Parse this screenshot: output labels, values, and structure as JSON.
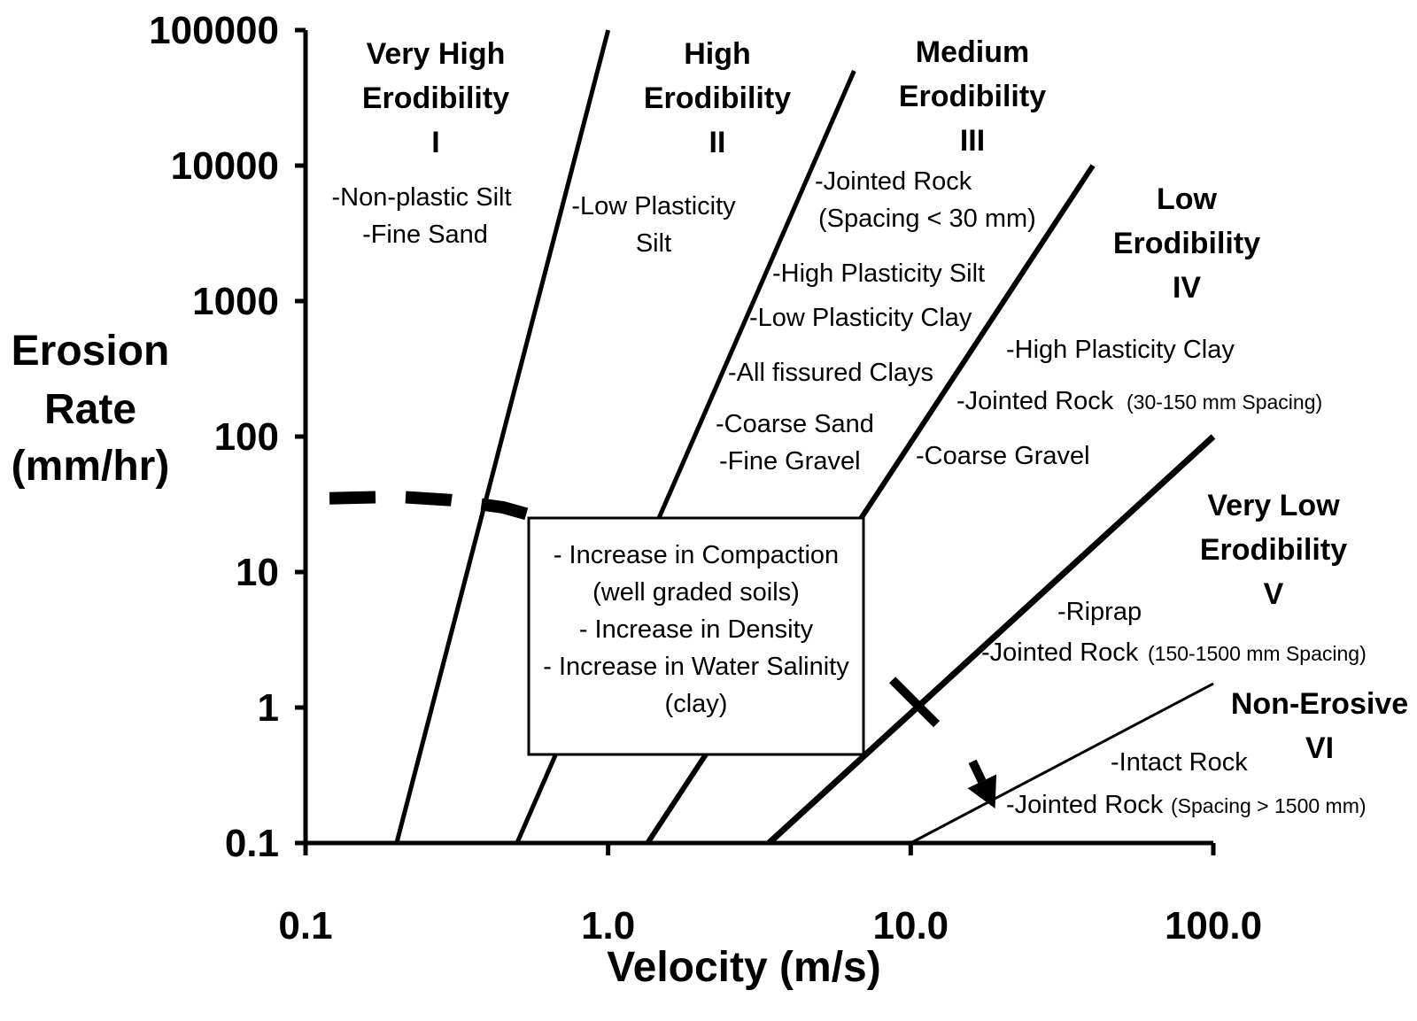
{
  "chart_data": {
    "type": "line",
    "title": "",
    "xlabel": "Velocity (m/s)",
    "ylabel": [
      "Erosion",
      "Rate",
      "(mm/hr)"
    ],
    "x_scale": "log",
    "y_scale": "log",
    "xlim": [
      0.1,
      100
    ],
    "ylim": [
      0.1,
      100000
    ],
    "x_ticks": [
      {
        "value": 0.1,
        "label": "0.1"
      },
      {
        "value": 1,
        "label": "1.0"
      },
      {
        "value": 10,
        "label": "10.0"
      },
      {
        "value": 100,
        "label": "100.0"
      }
    ],
    "y_ticks": [
      {
        "value": 0.1,
        "label": "0.1"
      },
      {
        "value": 1,
        "label": "1"
      },
      {
        "value": 10,
        "label": "10"
      },
      {
        "value": 100,
        "label": "100"
      },
      {
        "value": 1000,
        "label": "1000"
      },
      {
        "value": 10000,
        "label": "10000"
      },
      {
        "value": 100000,
        "label": "100000"
      }
    ],
    "grid": false,
    "boundaries": [
      {
        "name": "I-II",
        "x": [
          0.2,
          1.0
        ],
        "y": [
          0.1,
          100000
        ]
      },
      {
        "name": "II-III",
        "x": [
          0.5,
          6.5
        ],
        "y": [
          0.1,
          50000
        ]
      },
      {
        "name": "III-IV",
        "x": [
          1.35,
          40
        ],
        "y": [
          0.1,
          10000
        ]
      },
      {
        "name": "IV-V",
        "x": [
          3.4,
          100
        ],
        "y": [
          0.1,
          100
        ]
      },
      {
        "name": "V-VI",
        "x": [
          10,
          100
        ],
        "y": [
          0.1,
          1.5
        ]
      }
    ],
    "dashed_line": {
      "x": [
        0.12,
        0.2,
        0.3,
        0.45,
        0.6,
        0.75
      ],
      "y": [
        35,
        36,
        34,
        30,
        25,
        20
      ]
    },
    "arrow": {
      "x": [
        16,
        19
      ],
      "y": [
        0.4,
        0.18
      ]
    },
    "cross_marker": {
      "x": 10.5,
      "y": 1.05
    },
    "categories": [
      {
        "title": [
          "Very High",
          "Erodibility",
          "I"
        ],
        "materials": [
          [
            "-Non-plastic Silt",
            ""
          ],
          [
            "-Fine Sand",
            ""
          ]
        ]
      },
      {
        "title": [
          "High",
          "Erodibility",
          "II"
        ],
        "materials": [
          [
            "-Low Plasticity",
            ""
          ],
          [
            "Silt",
            ""
          ]
        ]
      },
      {
        "title": [
          "Medium",
          "Erodibility",
          "III"
        ],
        "materials": [
          [
            "-Jointed Rock",
            ""
          ],
          [
            "(Spacing < 30 mm)",
            ""
          ],
          [
            "-High Plasticity Silt",
            ""
          ],
          [
            "-Low Plasticity Clay",
            ""
          ],
          [
            "-All fissured Clays",
            ""
          ],
          [
            "-Coarse Sand",
            ""
          ],
          [
            "-Fine Gravel",
            ""
          ]
        ]
      },
      {
        "title": [
          "Low",
          "Erodibility",
          "IV"
        ],
        "materials": [
          [
            "-High Plasticity Clay",
            ""
          ],
          [
            "-Jointed Rock",
            "(30-150 mm Spacing)"
          ],
          [
            "-Coarse Gravel",
            ""
          ]
        ]
      },
      {
        "title": [
          "Very Low",
          "Erodibility",
          "V"
        ],
        "materials": [
          [
            "-Riprap",
            ""
          ],
          [
            "-Jointed Rock",
            "(150-1500 mm Spacing)"
          ]
        ]
      },
      {
        "title": [
          "Non-Erosive",
          "VI"
        ],
        "materials": [
          [
            "-Intact Rock",
            ""
          ],
          [
            "-Jointed Rock",
            "(Spacing > 1500 mm)"
          ]
        ]
      }
    ],
    "annotation_box": [
      "- Increase in Compaction",
      "(well graded soils)",
      "- Increase in Density",
      "- Increase in Water Salinity",
      "(clay)"
    ]
  }
}
